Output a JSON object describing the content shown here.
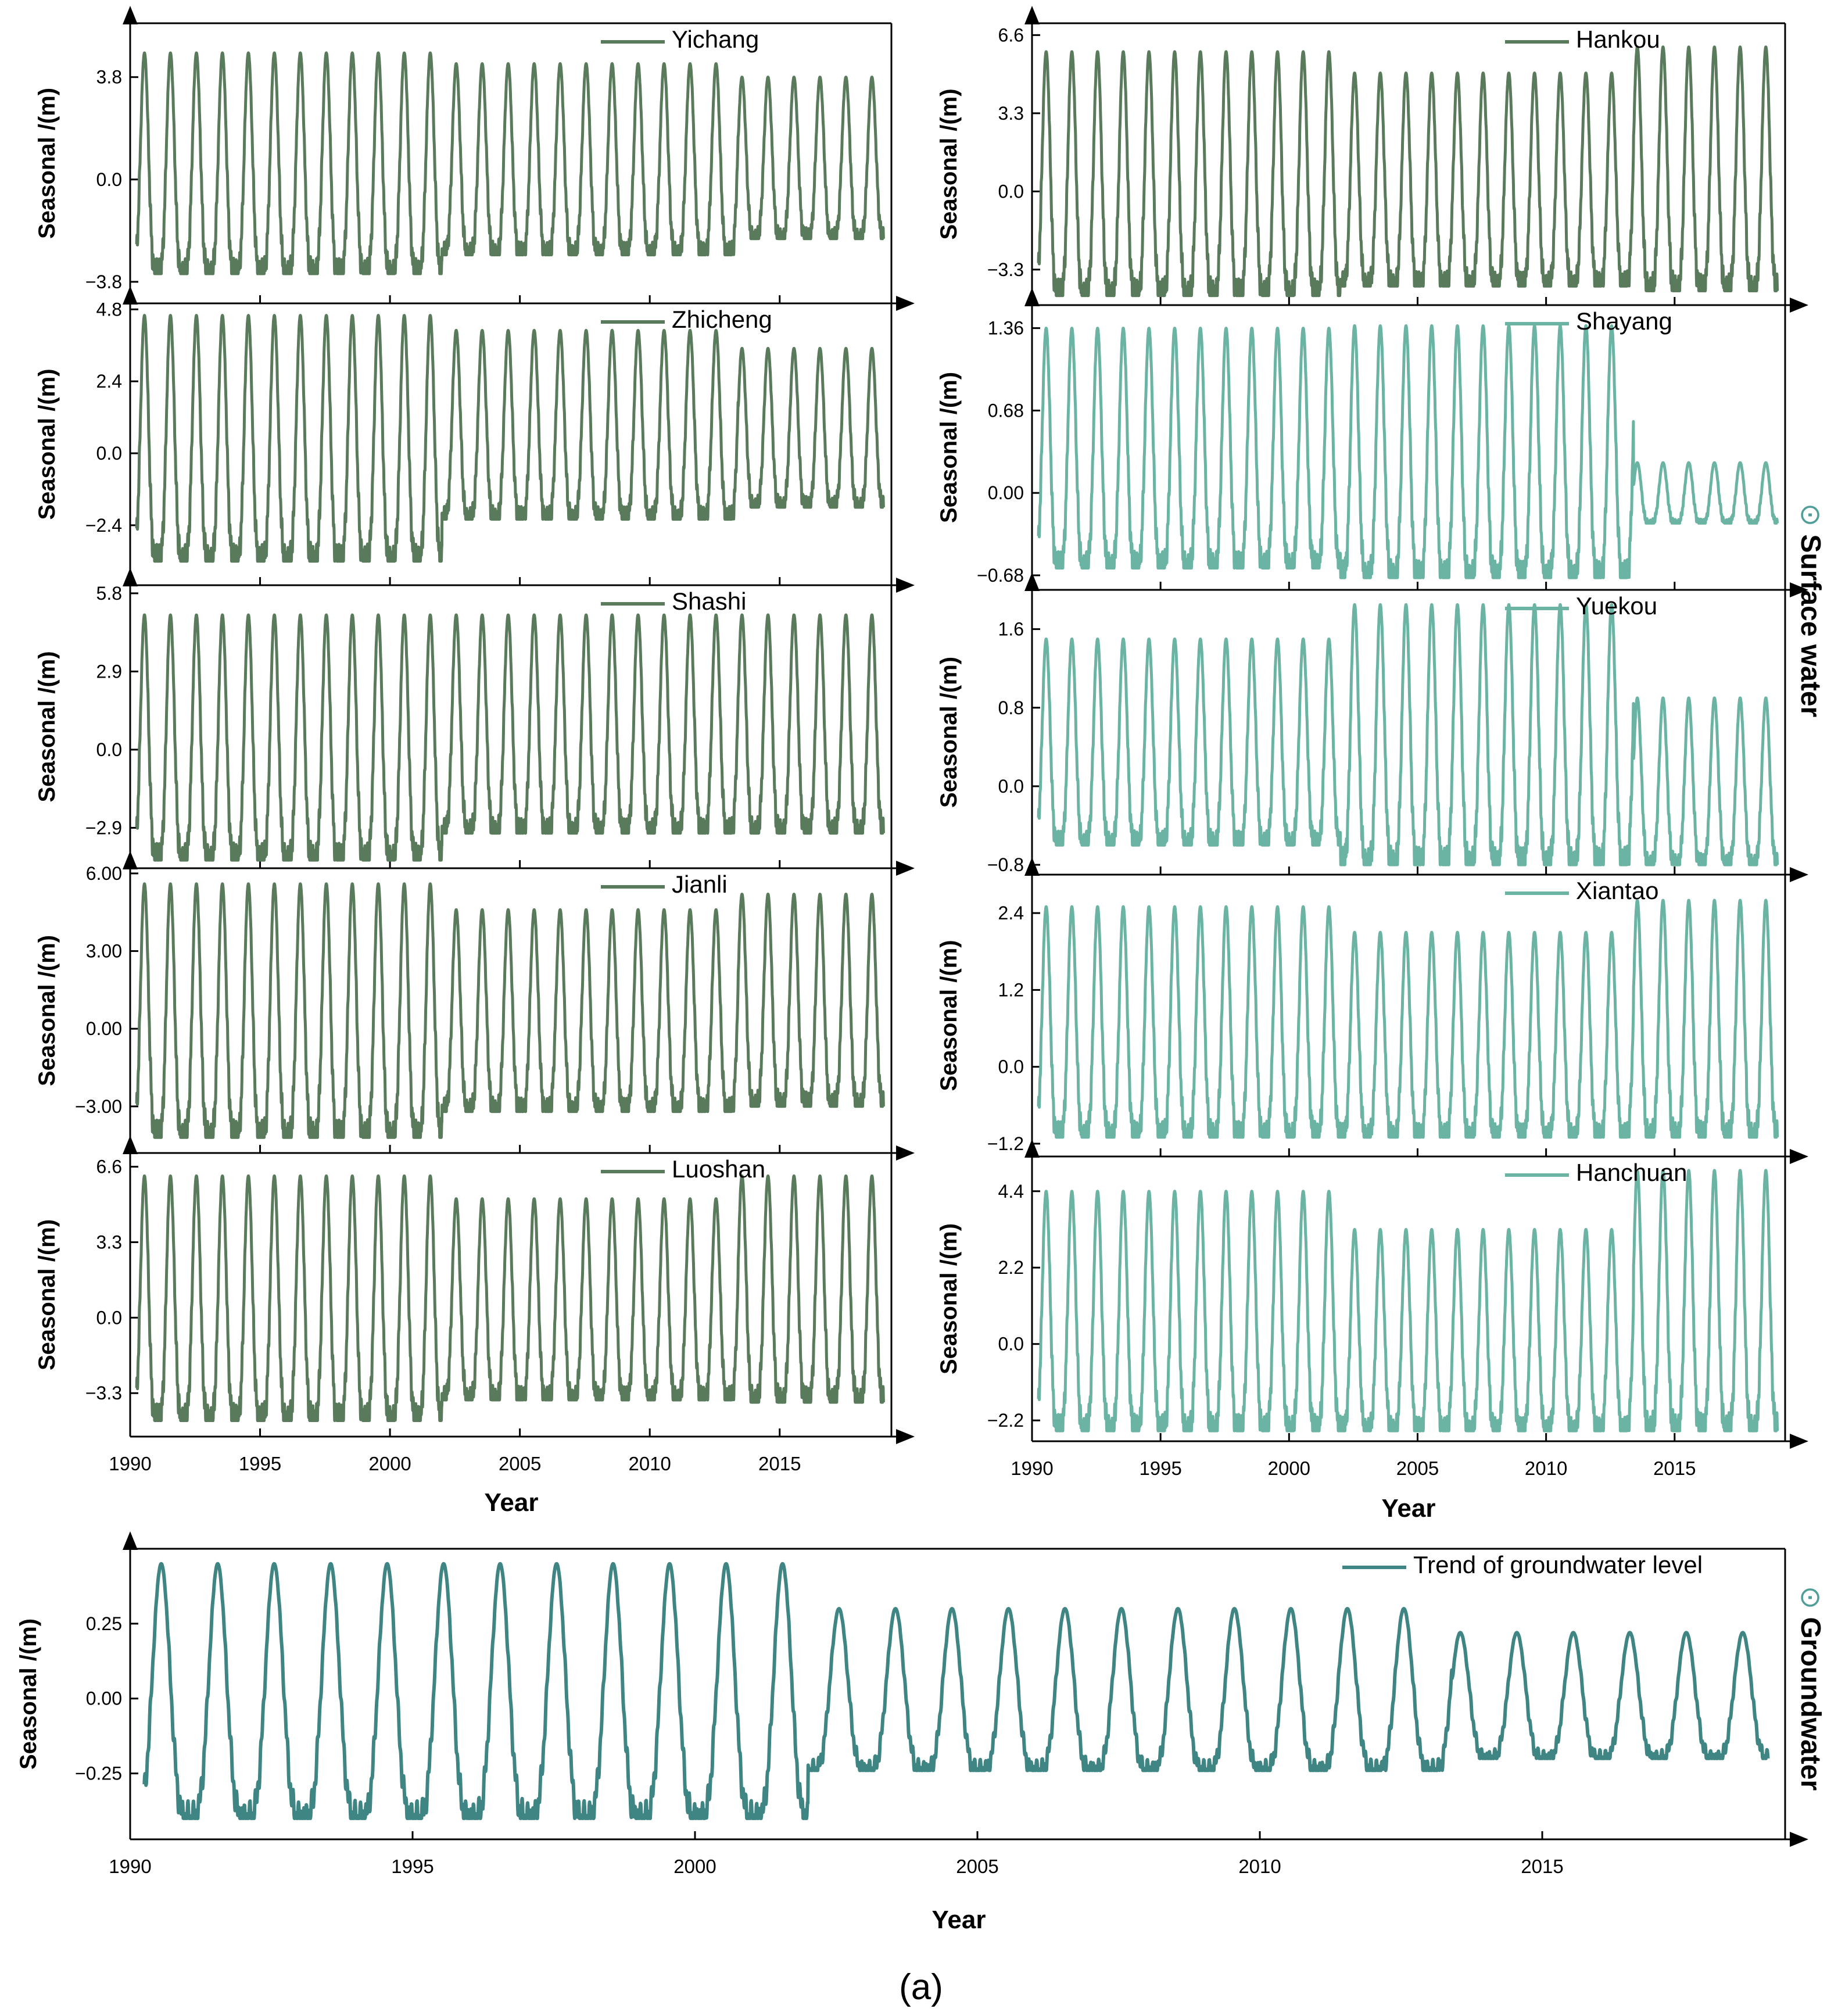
{
  "figure_caption": "(a)",
  "colors": {
    "dark_green": "#5a7a5c",
    "teal": "#6bb3a3",
    "groundwater": "#3f8583",
    "axis": "#000000",
    "side_label": "#4f9e97"
  },
  "side_labels": {
    "surface": "Surface water",
    "ground": "Groundwater",
    "marker": "⊙"
  },
  "common": {
    "ylabel": "Seasonal /(m)",
    "xlabel": "Year",
    "xlim": [
      1990,
      2019.3
    ],
    "xticks": [
      1990,
      1995,
      2000,
      2005,
      2010,
      2015
    ]
  },
  "chart_data": [
    {
      "id": "yichang",
      "type": "line",
      "station": "Yichang",
      "group": "surface",
      "color_key": "dark_green",
      "yticks": [
        "3.8",
        "0.0",
        "-3.8"
      ],
      "ytick_values": [
        3.8,
        0.0,
        -3.8
      ],
      "ylim": [
        -4.6,
        5.8
      ],
      "regimes": [
        {
          "end": 2002.0,
          "high": 4.7,
          "low": -3.5
        },
        {
          "end": 2013.4,
          "high": 4.3,
          "low": -2.8
        },
        {
          "end": 2020,
          "high": 3.8,
          "low": -2.2
        }
      ]
    },
    {
      "id": "zhicheng",
      "type": "line",
      "station": "Zhicheng",
      "group": "surface",
      "color_key": "dark_green",
      "yticks": [
        "4.8",
        "2.4",
        "0.0",
        "-2.4"
      ],
      "ytick_values": [
        4.8,
        2.4,
        0.0,
        -2.4
      ],
      "ylim": [
        -4.4,
        5.0
      ],
      "regimes": [
        {
          "end": 2002.0,
          "high": 4.6,
          "low": -3.6
        },
        {
          "end": 2013.4,
          "high": 4.1,
          "low": -2.2
        },
        {
          "end": 2020,
          "high": 3.5,
          "low": -1.8
        }
      ]
    },
    {
      "id": "shashi",
      "type": "line",
      "station": "Shashi",
      "group": "surface",
      "color_key": "dark_green",
      "yticks": [
        "5.8",
        "2.9",
        "0.0",
        "-2.9"
      ],
      "ytick_values": [
        5.8,
        2.9,
        0.0,
        -2.9
      ],
      "ylim": [
        -4.4,
        6.1
      ],
      "regimes": [
        {
          "end": 2002.0,
          "high": 5.0,
          "low": -4.1
        },
        {
          "end": 2020,
          "high": 5.0,
          "low": -3.1
        }
      ]
    },
    {
      "id": "jianli",
      "type": "line",
      "station": "Jianli",
      "group": "surface",
      "color_key": "dark_green",
      "yticks": [
        "6.00",
        "3.00",
        "0.00",
        "-3.00"
      ],
      "ytick_values": [
        6.0,
        3.0,
        0.0,
        -3.0
      ],
      "ylim": [
        -4.8,
        6.2
      ],
      "regimes": [
        {
          "end": 2002.0,
          "high": 5.6,
          "low": -4.2
        },
        {
          "end": 2013.4,
          "high": 4.6,
          "low": -3.2
        },
        {
          "end": 2020,
          "high": 5.2,
          "low": -3.0
        }
      ]
    },
    {
      "id": "luoshan",
      "type": "line",
      "station": "Luoshan",
      "group": "surface",
      "color_key": "dark_green",
      "yticks": [
        "6.6",
        "3.3",
        "0.0",
        "-3.3"
      ],
      "ytick_values": [
        6.6,
        3.3,
        0.0,
        -3.3
      ],
      "ylim": [
        -5.2,
        7.2
      ],
      "regimes": [
        {
          "end": 2002.0,
          "high": 6.2,
          "low": -4.5
        },
        {
          "end": 2013.4,
          "high": 5.2,
          "low": -3.6
        },
        {
          "end": 2020,
          "high": 6.2,
          "low": -3.7
        }
      ]
    },
    {
      "id": "hankou",
      "type": "line",
      "station": "Hankou",
      "group": "surface",
      "color_key": "dark_green",
      "yticks": [
        "6.6",
        "3.3",
        "0.0",
        "-3.3"
      ],
      "ytick_values": [
        6.6,
        3.3,
        0.0,
        -3.3
      ],
      "ylim": [
        -4.8,
        7.1
      ],
      "regimes": [
        {
          "end": 2002.0,
          "high": 5.9,
          "low": -4.4
        },
        {
          "end": 2013.4,
          "high": 5.0,
          "low": -4.0
        },
        {
          "end": 2020,
          "high": 6.1,
          "low": -4.2
        }
      ]
    },
    {
      "id": "shayang",
      "type": "line",
      "station": "Shayang",
      "group": "surface",
      "color_key": "teal",
      "yticks": [
        "1.36",
        "0.68",
        "0.00",
        "-0.68"
      ],
      "ytick_values": [
        1.36,
        0.68,
        0.0,
        -0.68
      ],
      "ylim": [
        -0.8,
        1.55
      ],
      "regimes": [
        {
          "end": 2002.0,
          "high": 1.36,
          "low": -0.62
        },
        {
          "end": 2013.4,
          "high": 1.38,
          "low": -0.7
        },
        {
          "end": 2020,
          "high": 0.25,
          "low": -0.25
        }
      ]
    },
    {
      "id": "yuekou",
      "type": "line",
      "station": "Yuekou",
      "group": "surface",
      "color_key": "teal",
      "yticks": [
        "1.6",
        "0.8",
        "0.0",
        "-0.8"
      ],
      "ytick_values": [
        1.6,
        0.8,
        0.0,
        -0.8
      ],
      "ylim": [
        -0.9,
        2.0
      ],
      "regimes": [
        {
          "end": 2002.0,
          "high": 1.5,
          "low": -0.6
        },
        {
          "end": 2013.4,
          "high": 1.85,
          "low": -0.8
        },
        {
          "end": 2020,
          "high": 0.9,
          "low": -0.8
        }
      ]
    },
    {
      "id": "xiantao",
      "type": "line",
      "station": "Xiantao",
      "group": "surface",
      "color_key": "teal",
      "yticks": [
        "2.4",
        "1.2",
        "0.0",
        "-1.2"
      ],
      "ytick_values": [
        2.4,
        1.2,
        0.0,
        -1.2
      ],
      "ylim": [
        -1.4,
        3.0
      ],
      "regimes": [
        {
          "end": 2002.0,
          "high": 2.5,
          "low": -1.1
        },
        {
          "end": 2013.4,
          "high": 2.1,
          "low": -1.1
        },
        {
          "end": 2020,
          "high": 2.6,
          "low": -1.1
        }
      ]
    },
    {
      "id": "hanchuan",
      "type": "line",
      "station": "Hanchuan",
      "group": "surface",
      "color_key": "teal",
      "yticks": [
        "4.4",
        "2.2",
        "0.0",
        "-2.2"
      ],
      "ytick_values": [
        4.4,
        2.2,
        0.0,
        -2.2
      ],
      "ylim": [
        -2.8,
        5.4
      ],
      "regimes": [
        {
          "end": 2002.0,
          "high": 4.4,
          "low": -2.5
        },
        {
          "end": 2013.4,
          "high": 3.3,
          "low": -2.5
        },
        {
          "end": 2020,
          "high": 5.0,
          "low": -2.5
        }
      ]
    },
    {
      "id": "groundwater",
      "type": "line",
      "station": "Trend of groundwater level",
      "group": "ground",
      "color_key": "groundwater",
      "yticks": [
        "0.25",
        "0.00",
        "-0.25"
      ],
      "ytick_values": [
        0.25,
        0.0,
        -0.25
      ],
      "ylim": [
        -0.47,
        0.5
      ],
      "regimes": [
        {
          "end": 2002.0,
          "high": 0.45,
          "low": -0.4
        },
        {
          "end": 2013.4,
          "high": 0.3,
          "low": -0.24
        },
        {
          "end": 2020,
          "high": 0.22,
          "low": -0.2
        }
      ]
    }
  ]
}
